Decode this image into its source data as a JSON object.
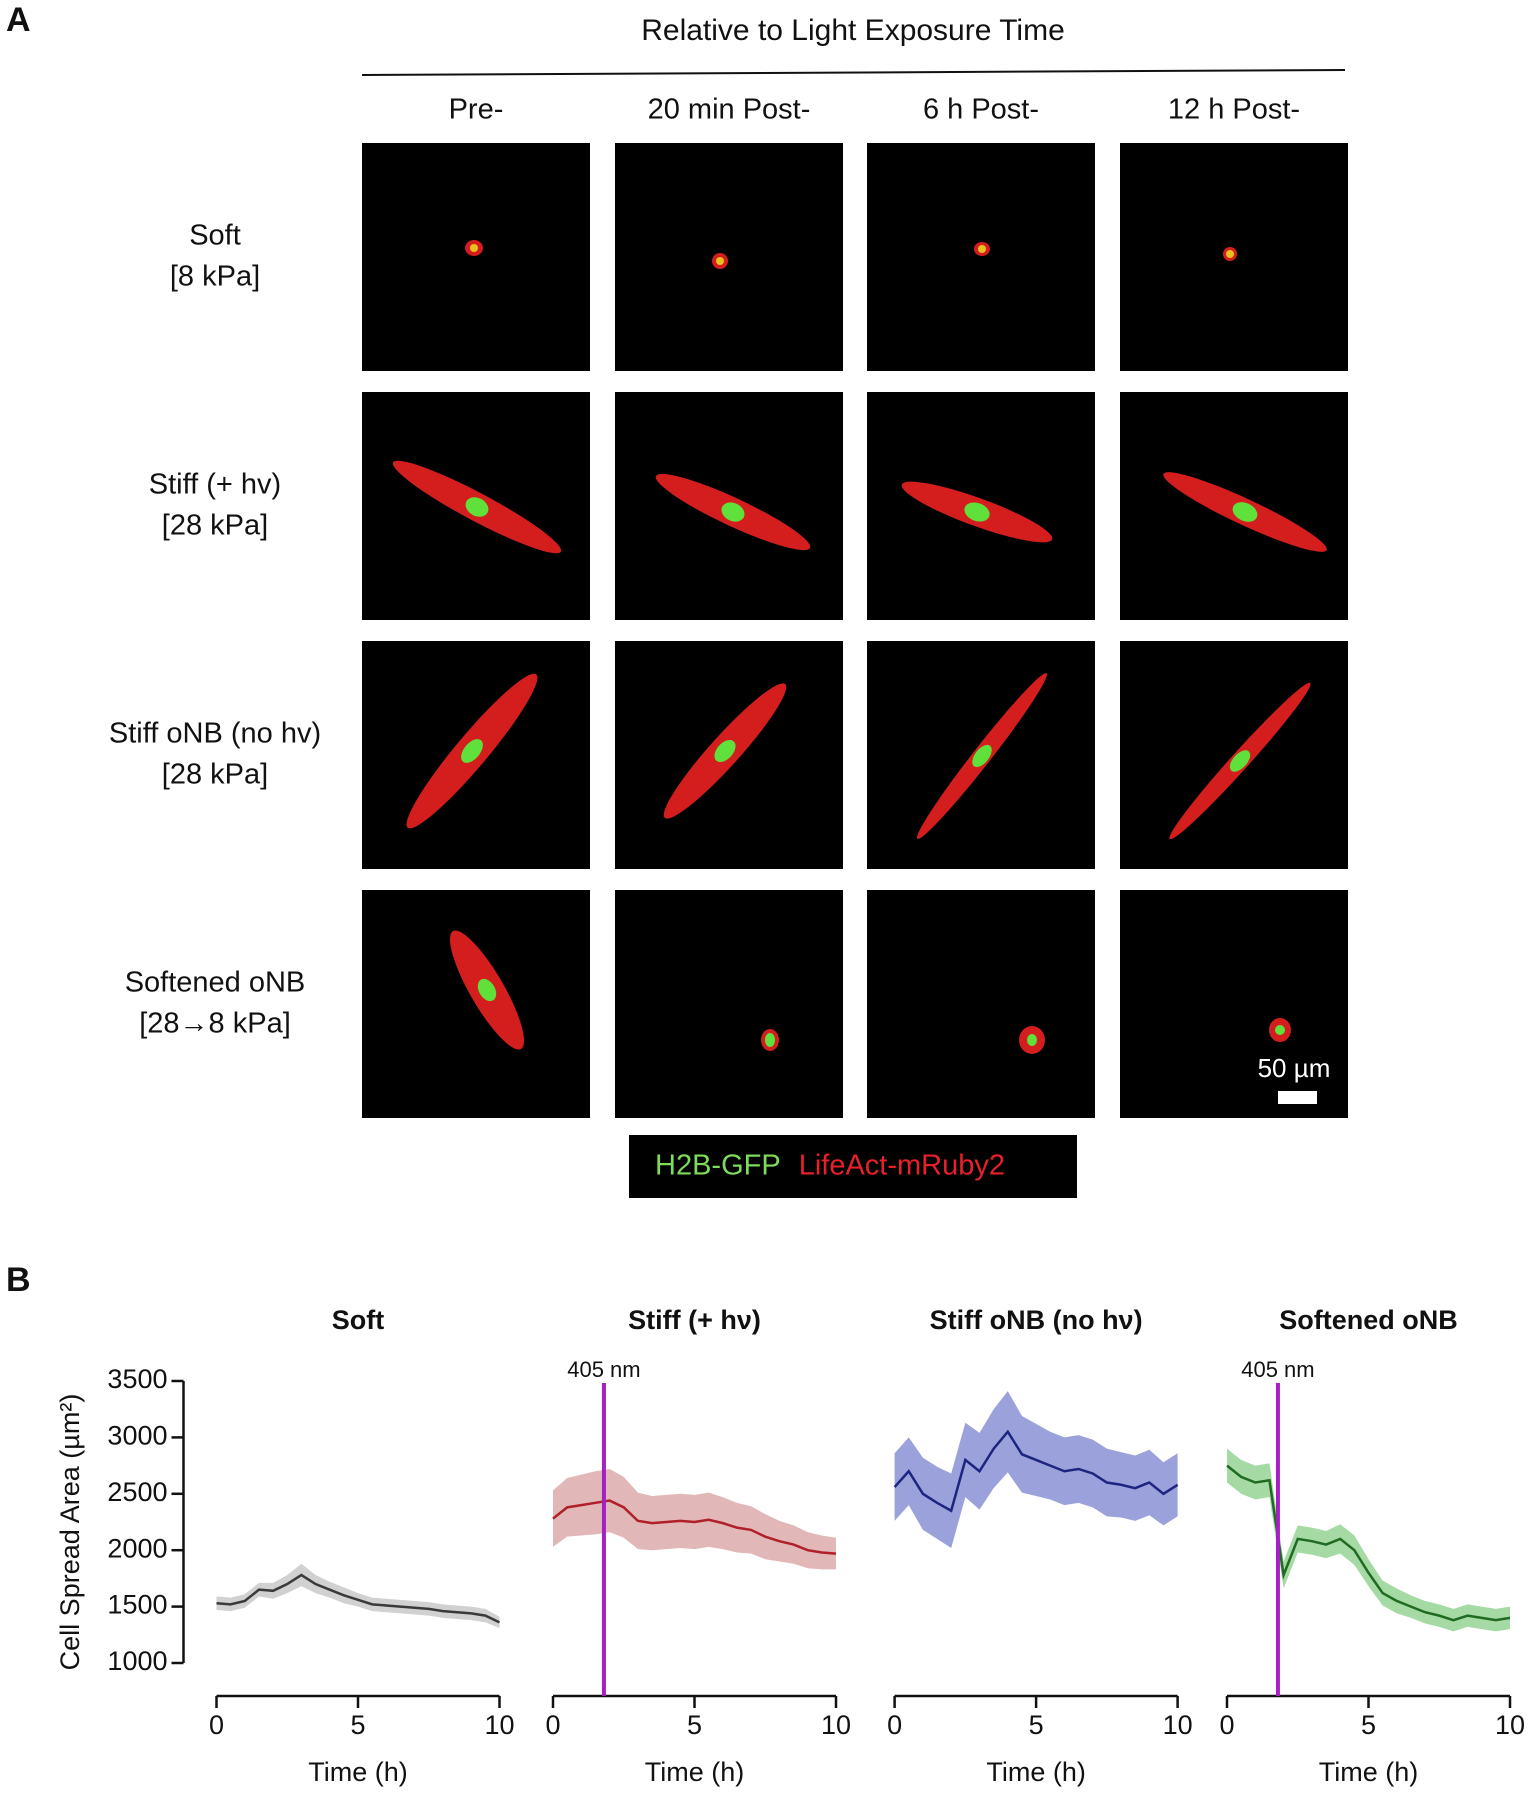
{
  "panel_a": {
    "label": "A",
    "header": "Relative to Light Exposure Time",
    "columns": [
      "Pre-",
      "20 min Post-",
      "6 h Post-",
      "12 h Post-"
    ],
    "rows": [
      [
        "Soft",
        "[8 kPa]"
      ],
      [
        "Stiff (+ hv)",
        "[28 kPa]"
      ],
      [
        "Stiff oNB (no hv)",
        "[28 kPa]"
      ],
      [
        "Softened oNB",
        "[28→8 kPa]"
      ]
    ],
    "scale_bar": "50 µm",
    "legend": [
      {
        "text": "H2B-GFP",
        "color": "#7ddc5a"
      },
      {
        "text": "LifeAct-mRuby2",
        "color": "#e8202a"
      }
    ]
  },
  "panel_b_label": "B",
  "chart_data": [
    {
      "type": "line",
      "title": "Soft",
      "ylabel": "Cell Spread Area (µm²)",
      "xlabel": "Time (h)",
      "x": [
        0,
        0.5,
        1,
        1.5,
        2,
        2.5,
        3,
        3.5,
        4,
        4.5,
        5,
        5.5,
        6,
        6.5,
        7,
        7.5,
        8,
        8.5,
        9,
        9.5,
        10
      ],
      "series": [
        {
          "color": "#3a3a3a",
          "band_color": "#c9c9c9",
          "values": [
            1530,
            1520,
            1550,
            1650,
            1640,
            1700,
            1780,
            1700,
            1650,
            1600,
            1560,
            1520,
            1510,
            1500,
            1490,
            1480,
            1460,
            1450,
            1440,
            1420,
            1360
          ],
          "error": [
            60,
            60,
            60,
            60,
            70,
            80,
            100,
            80,
            70,
            70,
            60,
            60,
            60,
            60,
            60,
            60,
            60,
            60,
            60,
            60,
            50
          ]
        }
      ],
      "xlim": [
        0,
        10
      ],
      "xticks": [
        0,
        5,
        10
      ],
      "ylim": [
        1000,
        3500
      ],
      "yticks": [
        1000,
        1500,
        2000,
        2500,
        3000,
        3500
      ]
    },
    {
      "type": "line",
      "title": "Stiff (+ hν)",
      "xlabel": "Time (h)",
      "x": [
        0,
        0.5,
        1,
        1.5,
        2,
        2.5,
        3,
        3.5,
        4,
        4.5,
        5,
        5.5,
        6,
        6.5,
        7,
        7.5,
        8,
        8.5,
        9,
        9.5,
        10
      ],
      "series": [
        {
          "color": "#b0202a",
          "band_color": "#ddaaaa",
          "values": [
            2280,
            2380,
            2400,
            2420,
            2440,
            2380,
            2260,
            2240,
            2250,
            2260,
            2250,
            2270,
            2240,
            2200,
            2180,
            2120,
            2080,
            2050,
            2000,
            1980,
            1970
          ],
          "error": [
            250,
            260,
            270,
            280,
            280,
            270,
            250,
            240,
            240,
            240,
            240,
            240,
            230,
            220,
            210,
            200,
            180,
            170,
            160,
            150,
            140
          ]
        }
      ],
      "xlim": [
        0,
        10
      ],
      "xticks": [
        0,
        5,
        10
      ],
      "ylim": [
        1000,
        3500
      ],
      "annotation": {
        "x": 1.8,
        "text": "405 nm",
        "color": "#a61fc4"
      }
    },
    {
      "type": "line",
      "title": "Stiff oNB (no hν)",
      "xlabel": "Time (h)",
      "x": [
        0,
        0.5,
        1,
        1.5,
        2,
        2.5,
        3,
        3.5,
        4,
        4.5,
        5,
        5.5,
        6,
        6.5,
        7,
        7.5,
        8,
        8.5,
        9,
        9.5,
        10
      ],
      "series": [
        {
          "color": "#1c2580",
          "band_color": "#8a90d4",
          "values": [
            2560,
            2700,
            2500,
            2420,
            2350,
            2800,
            2700,
            2900,
            3050,
            2850,
            2800,
            2750,
            2700,
            2720,
            2680,
            2600,
            2580,
            2550,
            2600,
            2500,
            2580
          ],
          "error": [
            300,
            300,
            320,
            320,
            330,
            330,
            340,
            350,
            360,
            340,
            320,
            300,
            300,
            300,
            300,
            300,
            290,
            290,
            290,
            280,
            280
          ]
        }
      ],
      "xlim": [
        0,
        10
      ],
      "xticks": [
        0,
        5,
        10
      ],
      "ylim": [
        1000,
        3500
      ]
    },
    {
      "type": "line",
      "title": "Softened oNB",
      "xlabel": "Time (h)",
      "x": [
        0,
        0.5,
        1,
        1.5,
        2,
        2.5,
        3,
        3.5,
        4,
        4.5,
        5,
        5.5,
        6,
        6.5,
        7,
        7.5,
        8,
        8.5,
        9,
        9.5,
        10
      ],
      "series": [
        {
          "color": "#1f6b22",
          "band_color": "#95d495",
          "values": [
            2750,
            2650,
            2600,
            2620,
            1780,
            2100,
            2080,
            2050,
            2100,
            2000,
            1800,
            1620,
            1550,
            1500,
            1450,
            1420,
            1380,
            1420,
            1400,
            1380,
            1400
          ],
          "error": [
            150,
            150,
            150,
            150,
            120,
            120,
            120,
            120,
            130,
            130,
            120,
            110,
            110,
            100,
            100,
            100,
            100,
            100,
            100,
            100,
            100
          ]
        }
      ],
      "xlim": [
        0,
        10
      ],
      "xticks": [
        0,
        5,
        10
      ],
      "ylim": [
        1000,
        3500
      ],
      "annotation": {
        "x": 1.8,
        "text": "405 nm",
        "color": "#a61fc4"
      }
    }
  ]
}
